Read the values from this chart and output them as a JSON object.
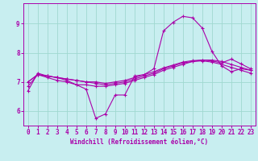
{
  "xlabel": "Windchill (Refroidissement éolien,°C)",
  "bg_color": "#c8eef0",
  "grid_color": "#a0d8d0",
  "line_color": "#aa00aa",
  "xlim": [
    -0.5,
    23.5
  ],
  "ylim": [
    5.5,
    9.7
  ],
  "yticks": [
    6,
    7,
    8,
    9
  ],
  "xticks": [
    0,
    1,
    2,
    3,
    4,
    5,
    6,
    7,
    8,
    9,
    10,
    11,
    12,
    13,
    14,
    15,
    16,
    17,
    18,
    19,
    20,
    21,
    22,
    23
  ],
  "series": [
    {
      "x": [
        0,
        1,
        2,
        3,
        4,
        5,
        6,
        7,
        8,
        9,
        10,
        11,
        12,
        13,
        14,
        15,
        16,
        17,
        18,
        19,
        20,
        21,
        22,
        23
      ],
      "y": [
        6.7,
        7.3,
        7.2,
        7.15,
        7.05,
        6.9,
        6.75,
        5.75,
        5.9,
        6.55,
        6.55,
        7.2,
        7.25,
        7.45,
        8.75,
        9.05,
        9.25,
        9.2,
        8.85,
        8.05,
        7.55,
        7.35,
        7.45,
        7.4
      ]
    },
    {
      "x": [
        0,
        1,
        2,
        3,
        4,
        5,
        6,
        7,
        8,
        9,
        10,
        11,
        12,
        13,
        14,
        15,
        16,
        17,
        18,
        19,
        20,
        21,
        22,
        23
      ],
      "y": [
        6.85,
        7.25,
        7.15,
        7.05,
        7.0,
        6.9,
        6.9,
        6.85,
        6.85,
        6.9,
        6.95,
        7.05,
        7.15,
        7.25,
        7.4,
        7.5,
        7.6,
        7.7,
        7.75,
        7.75,
        7.7,
        7.6,
        7.5,
        7.4
      ]
    },
    {
      "x": [
        0,
        1,
        2,
        3,
        4,
        5,
        6,
        7,
        8,
        9,
        10,
        11,
        12,
        13,
        14,
        15,
        16,
        17,
        18,
        19,
        20,
        21,
        22,
        23
      ],
      "y": [
        7.0,
        7.25,
        7.2,
        7.15,
        7.1,
        7.05,
        7.0,
        6.95,
        6.9,
        6.95,
        7.0,
        7.1,
        7.2,
        7.3,
        7.45,
        7.55,
        7.65,
        7.7,
        7.72,
        7.68,
        7.6,
        7.5,
        7.4,
        7.3
      ]
    },
    {
      "x": [
        0,
        1,
        2,
        3,
        4,
        5,
        6,
        7,
        8,
        9,
        10,
        11,
        12,
        13,
        14,
        15,
        16,
        17,
        18,
        19,
        20,
        21,
        22,
        23
      ],
      "y": [
        7.0,
        7.25,
        7.2,
        7.15,
        7.1,
        7.05,
        7.0,
        7.0,
        6.95,
        7.0,
        7.05,
        7.15,
        7.25,
        7.35,
        7.48,
        7.58,
        7.68,
        7.73,
        7.75,
        7.72,
        7.65,
        7.78,
        7.62,
        7.45
      ]
    }
  ]
}
